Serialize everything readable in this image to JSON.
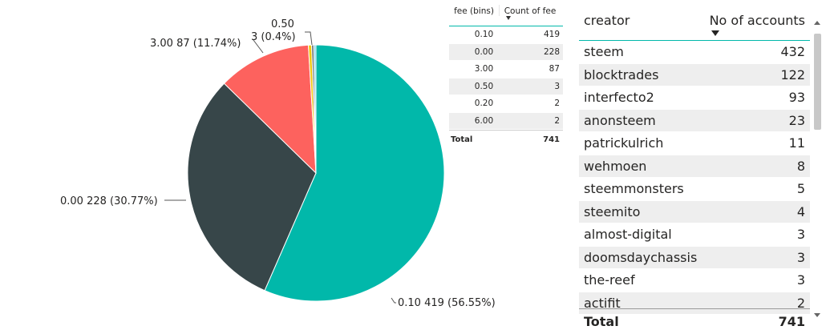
{
  "chart_data": {
    "type": "pie",
    "slices": [
      {
        "label": "0.10",
        "value": 419,
        "percent": "56.55%",
        "color": "#01b8aa"
      },
      {
        "label": "0.00",
        "value": 228,
        "percent": "30.77%",
        "color": "#374649"
      },
      {
        "label": "3.00",
        "value": 87,
        "percent": "11.74%",
        "color": "#fd625e"
      },
      {
        "label": "0.50",
        "value": 3,
        "percent": "0.4%",
        "color": "#f2c80f"
      },
      {
        "label": "0.20",
        "value": 2,
        "percent": "",
        "color": "#5f6b6d"
      },
      {
        "label": "6.00",
        "value": 2,
        "percent": "",
        "color": "#8ad4eb"
      }
    ],
    "labels": {
      "s0": "0.10 419 (56.55%)",
      "s1": "0.00 228 (30.77%)",
      "s2": "3.00 87 (11.74%)",
      "s3a": "0.50",
      "s3b": "3 (0.4%)"
    }
  },
  "fee_table": {
    "headers": [
      "fee (bins)",
      "Count of fee"
    ],
    "rows": [
      [
        "0.10",
        "419"
      ],
      [
        "0.00",
        "228"
      ],
      [
        "3.00",
        "87"
      ],
      [
        "0.50",
        "3"
      ],
      [
        "0.20",
        "2"
      ],
      [
        "6.00",
        "2"
      ]
    ],
    "total_label": "Total",
    "total_value": "741"
  },
  "creator_table": {
    "headers": [
      "creator",
      "No of accounts"
    ],
    "rows": [
      [
        "steem",
        "432"
      ],
      [
        "blocktrades",
        "122"
      ],
      [
        "interfecto2",
        "93"
      ],
      [
        "anonsteem",
        "23"
      ],
      [
        "patrickulrich",
        "11"
      ],
      [
        "wehmoen",
        "8"
      ],
      [
        "steemmonsters",
        "5"
      ],
      [
        "steemito",
        "4"
      ],
      [
        "almost-digital",
        "3"
      ],
      [
        "doomsdaychassis",
        "3"
      ],
      [
        "the-reef",
        "3"
      ],
      [
        "actifit",
        "2"
      ]
    ],
    "total_label": "Total",
    "total_value": "741"
  },
  "icons": {
    "sort": "sort-descending-icon",
    "scroll_up": "chevron-up-icon",
    "scroll_down": "chevron-down-icon"
  }
}
